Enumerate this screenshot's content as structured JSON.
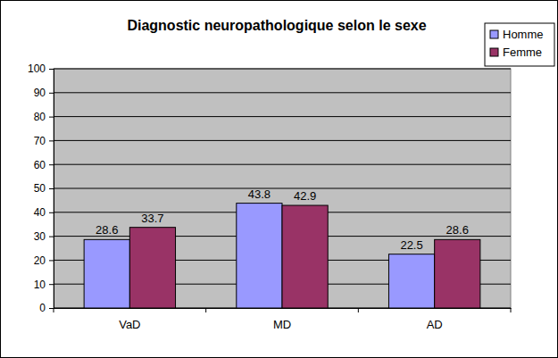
{
  "chart_data": {
    "type": "bar",
    "title": "Diagnostic neuropathologique selon le sexe",
    "categories": [
      "VaD",
      "MD",
      "AD"
    ],
    "series": [
      {
        "name": "Homme",
        "color": "#9999ff",
        "values": [
          28.6,
          43.8,
          22.5
        ]
      },
      {
        "name": "Femme",
        "color": "#993366",
        "values": [
          33.7,
          42.9,
          28.6
        ]
      }
    ],
    "ylim": [
      0,
      100
    ],
    "yticks": [
      0,
      10,
      20,
      30,
      40,
      50,
      60,
      70,
      80,
      90,
      100
    ],
    "grid": true,
    "legend": "top-right",
    "data_labels": true
  }
}
